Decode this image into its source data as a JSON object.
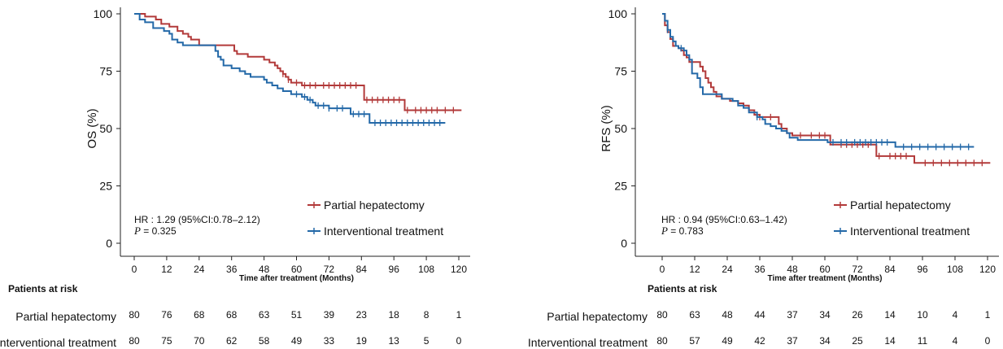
{
  "chart_data": [
    {
      "type": "line",
      "ylabel": "OS (%)",
      "xlabel": "Time after treatment (Months)",
      "xlim": [
        0,
        120
      ],
      "ylim": [
        0,
        100
      ],
      "x_ticks": [
        0,
        12,
        24,
        36,
        48,
        60,
        72,
        84,
        96,
        108,
        120
      ],
      "y_ticks": [
        0,
        25,
        50,
        75,
        100
      ],
      "grid": false,
      "legend_position": "lower-right",
      "stats": {
        "hr": "HR : 1.29 (95%CI:0.78–2.12)",
        "p_label": "P",
        "p_value": " = 0.325"
      },
      "series": [
        {
          "name": "Partial hepatectomy",
          "color": "#b23a3a",
          "points": [
            [
              0,
              100
            ],
            [
              4,
              98.8
            ],
            [
              8,
              97.5
            ],
            [
              10,
              95.6
            ],
            [
              13,
              94.4
            ],
            [
              16,
              92.5
            ],
            [
              18,
              91.3
            ],
            [
              20,
              90
            ],
            [
              21,
              88.8
            ],
            [
              24,
              86.3
            ],
            [
              36,
              86.3
            ],
            [
              37,
              83.8
            ],
            [
              38,
              82.5
            ],
            [
              42,
              81.3
            ],
            [
              48,
              80
            ],
            [
              50,
              78.8
            ],
            [
              52,
              77.5
            ],
            [
              53,
              76.3
            ],
            [
              54,
              75
            ],
            [
              55,
              73.8
            ],
            [
              56,
              72.5
            ],
            [
              57,
              71.3
            ],
            [
              58,
              70
            ],
            [
              61,
              70
            ],
            [
              62,
              68.8
            ],
            [
              84,
              68.8
            ],
            [
              85,
              62.5
            ],
            [
              99,
              62.5
            ],
            [
              100,
              58
            ],
            [
              121,
              58
            ]
          ],
          "censors": [
            55,
            57,
            60,
            63,
            65,
            67,
            70,
            72,
            74,
            76,
            78,
            80,
            82,
            86,
            88,
            90,
            92,
            94,
            96,
            98,
            101,
            104,
            106,
            108,
            110,
            112,
            115,
            118
          ]
        },
        {
          "name": "Interventional treatment",
          "color": "#2469a8",
          "points": [
            [
              0,
              100
            ],
            [
              2,
              97.5
            ],
            [
              4,
              96.3
            ],
            [
              7,
              93.8
            ],
            [
              11,
              92.5
            ],
            [
              13,
              91.3
            ],
            [
              14,
              88.8
            ],
            [
              16,
              87.5
            ],
            [
              18,
              86.3
            ],
            [
              29,
              86.3
            ],
            [
              30,
              83.8
            ],
            [
              31,
              81.3
            ],
            [
              32,
              80
            ],
            [
              33,
              77.5
            ],
            [
              36,
              76.3
            ],
            [
              39,
              75
            ],
            [
              41,
              73.8
            ],
            [
              43,
              72.5
            ],
            [
              48,
              71.3
            ],
            [
              49,
              70
            ],
            [
              51,
              68.8
            ],
            [
              53,
              67.5
            ],
            [
              55,
              66.3
            ],
            [
              58,
              65
            ],
            [
              62,
              63.8
            ],
            [
              64,
              62.5
            ],
            [
              66,
              61.3
            ],
            [
              67,
              60
            ],
            [
              71,
              60
            ],
            [
              72,
              58.8
            ],
            [
              79,
              58.8
            ],
            [
              80,
              56.3
            ],
            [
              86,
              56.3
            ],
            [
              87,
              52.5
            ],
            [
              115,
              52.5
            ]
          ],
          "censors": [
            60,
            63,
            65,
            68,
            70,
            72,
            75,
            77,
            81,
            83,
            85,
            89,
            91,
            93,
            95,
            97,
            99,
            101,
            103,
            105,
            107,
            109,
            111,
            113
          ]
        }
      ],
      "risk_table": {
        "title": "Patients at risk",
        "times": [
          0,
          12,
          24,
          36,
          48,
          60,
          72,
          84,
          96,
          108,
          120
        ],
        "rows": [
          {
            "label": "Partial hepatectomy",
            "values": [
              "80",
              "76",
              "68",
              "68",
              "63",
              "51",
              "39",
              "23",
              "18",
              "8",
              "1"
            ]
          },
          {
            "label": "Interventional treatment",
            "values": [
              "80",
              "75",
              "70",
              "62",
              "58",
              "49",
              "33",
              "19",
              "13",
              "5",
              "0"
            ]
          }
        ]
      }
    },
    {
      "type": "line",
      "ylabel": "RFS (%)",
      "xlabel": "Time after treatment (Months)",
      "xlim": [
        0,
        120
      ],
      "ylim": [
        0,
        100
      ],
      "x_ticks": [
        0,
        12,
        24,
        36,
        48,
        60,
        72,
        84,
        96,
        108,
        120
      ],
      "y_ticks": [
        0,
        25,
        50,
        75,
        100
      ],
      "grid": false,
      "legend_position": "lower-right",
      "stats": {
        "hr": "HR : 0.94 (95%CI:0.63–1.42)",
        "p_label": "P",
        "p_value": " = 0.783"
      },
      "series": [
        {
          "name": "Partial hepatectomy",
          "color": "#b23a3a",
          "points": [
            [
              0,
              100
            ],
            [
              1,
              95
            ],
            [
              2,
              92
            ],
            [
              3,
              89
            ],
            [
              4,
              86
            ],
            [
              6,
              85
            ],
            [
              7,
              84
            ],
            [
              8,
              82
            ],
            [
              9,
              81
            ],
            [
              10,
              79
            ],
            [
              13,
              79
            ],
            [
              14,
              77
            ],
            [
              15,
              75
            ],
            [
              16,
              72
            ],
            [
              17,
              70
            ],
            [
              18,
              68
            ],
            [
              19,
              66
            ],
            [
              20,
              64
            ],
            [
              22,
              63
            ],
            [
              25,
              62
            ],
            [
              28,
              61
            ],
            [
              30,
              60
            ],
            [
              32,
              58
            ],
            [
              34,
              56
            ],
            [
              36,
              55
            ],
            [
              42,
              55
            ],
            [
              43,
              52
            ],
            [
              44,
              50
            ],
            [
              46,
              48
            ],
            [
              48,
              47
            ],
            [
              61,
              47
            ],
            [
              62,
              43
            ],
            [
              78,
              43
            ],
            [
              79,
              38
            ],
            [
              92,
              38
            ],
            [
              93,
              35
            ],
            [
              121,
              35
            ]
          ],
          "censors": [
            36,
            40,
            51,
            55,
            58,
            60,
            66,
            68,
            70,
            72,
            74,
            76,
            80,
            84,
            86,
            88,
            90,
            97,
            100,
            103,
            106,
            109,
            112,
            115,
            118
          ]
        },
        {
          "name": "Interventional treatment",
          "color": "#2469a8",
          "points": [
            [
              0,
              100
            ],
            [
              1,
              97
            ],
            [
              2,
              93
            ],
            [
              3,
              90
            ],
            [
              4,
              88
            ],
            [
              5,
              86
            ],
            [
              6,
              85
            ],
            [
              8,
              84
            ],
            [
              9,
              82
            ],
            [
              10,
              80
            ],
            [
              11,
              74
            ],
            [
              13,
              72
            ],
            [
              14,
              68
            ],
            [
              15,
              65
            ],
            [
              21,
              65
            ],
            [
              22,
              63
            ],
            [
              26,
              62
            ],
            [
              28,
              60
            ],
            [
              30,
              59
            ],
            [
              32,
              57
            ],
            [
              35,
              55
            ],
            [
              37,
              54
            ],
            [
              38,
              52
            ],
            [
              40,
              51
            ],
            [
              42,
              50
            ],
            [
              44,
              49
            ],
            [
              46,
              48
            ],
            [
              47,
              46
            ],
            [
              50,
              45
            ],
            [
              60,
              45
            ],
            [
              61,
              44
            ],
            [
              85,
              44
            ],
            [
              86,
              42
            ],
            [
              115,
              42
            ]
          ],
          "censors": [
            2,
            7,
            35,
            63,
            66,
            68,
            71,
            73,
            75,
            77,
            79,
            81,
            83,
            89,
            92,
            95,
            98,
            101,
            104,
            107,
            110,
            113
          ]
        }
      ],
      "risk_table": {
        "title": "Patients at risk",
        "times": [
          0,
          12,
          24,
          36,
          48,
          60,
          72,
          84,
          96,
          108,
          120
        ],
        "rows": [
          {
            "label": "Partial hepatectomy",
            "values": [
              "80",
              "63",
              "48",
              "44",
              "37",
              "34",
              "26",
              "14",
              "10",
              "4",
              "1"
            ]
          },
          {
            "label": "Interventional treatment",
            "values": [
              "80",
              "57",
              "49",
              "42",
              "37",
              "34",
              "25",
              "14",
              "11",
              "4",
              "0"
            ]
          }
        ]
      }
    }
  ]
}
